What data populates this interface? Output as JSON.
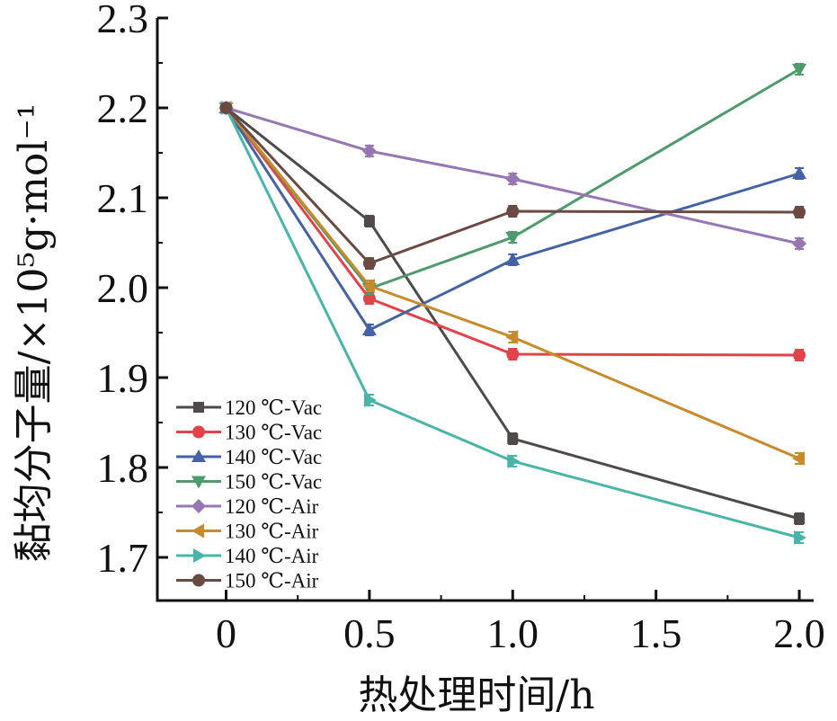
{
  "chart_data": {
    "type": "line",
    "title": "",
    "xlabel": "热处理时间/h",
    "ylabel": "黏均分子量/×10⁵g·mol⁻¹",
    "xlim": [
      -0.24,
      2.05
    ],
    "ylim": [
      1.652,
      2.3
    ],
    "x": [
      0,
      0.5,
      1.0,
      2.0
    ],
    "xticks": [
      0,
      0.5,
      1.0,
      1.5,
      2.0
    ],
    "xtick_labels": [
      "0",
      "0.5",
      "1.0",
      "1.5",
      "2.0"
    ],
    "yticks": [
      1.7,
      1.8,
      1.9,
      2.0,
      2.1,
      2.2,
      2.3
    ],
    "ytick_labels": [
      "1.7",
      "1.8",
      "1.9",
      "2.0",
      "2.1",
      "2.2",
      "2.3"
    ],
    "grid": false,
    "legend_position": "bottom-left",
    "series": [
      {
        "name": "120 ℃-Vac",
        "color": "#4f4a49",
        "marker": "square",
        "values": [
          2.2,
          2.074,
          1.832,
          1.743
        ]
      },
      {
        "name": "130 ℃-Vac",
        "color": "#e2434a",
        "marker": "circle",
        "values": [
          2.2,
          1.988,
          1.926,
          1.925
        ]
      },
      {
        "name": "140 ℃-Vac",
        "color": "#4563a4",
        "marker": "triangle-up",
        "values": [
          2.2,
          1.953,
          2.031,
          2.127
        ]
      },
      {
        "name": "150 ℃-Vac",
        "color": "#4e9a6a",
        "marker": "triangle-down",
        "values": [
          2.2,
          1.999,
          2.056,
          2.243
        ]
      },
      {
        "name": "120 ℃-Air",
        "color": "#9677b3",
        "marker": "diamond",
        "values": [
          2.2,
          2.152,
          2.121,
          2.049
        ]
      },
      {
        "name": "130 ℃-Air",
        "color": "#c78b2b",
        "marker": "triangle-left",
        "values": [
          2.2,
          2.002,
          1.945,
          1.81
        ]
      },
      {
        "name": "140 ℃-Air",
        "color": "#48b5a8",
        "marker": "triangle-right",
        "values": [
          2.2,
          1.875,
          1.807,
          1.722
        ]
      },
      {
        "name": "150 ℃-Air",
        "color": "#6b4a44",
        "marker": "hexagon",
        "values": [
          2.2,
          2.027,
          2.085,
          2.084
        ]
      }
    ]
  }
}
